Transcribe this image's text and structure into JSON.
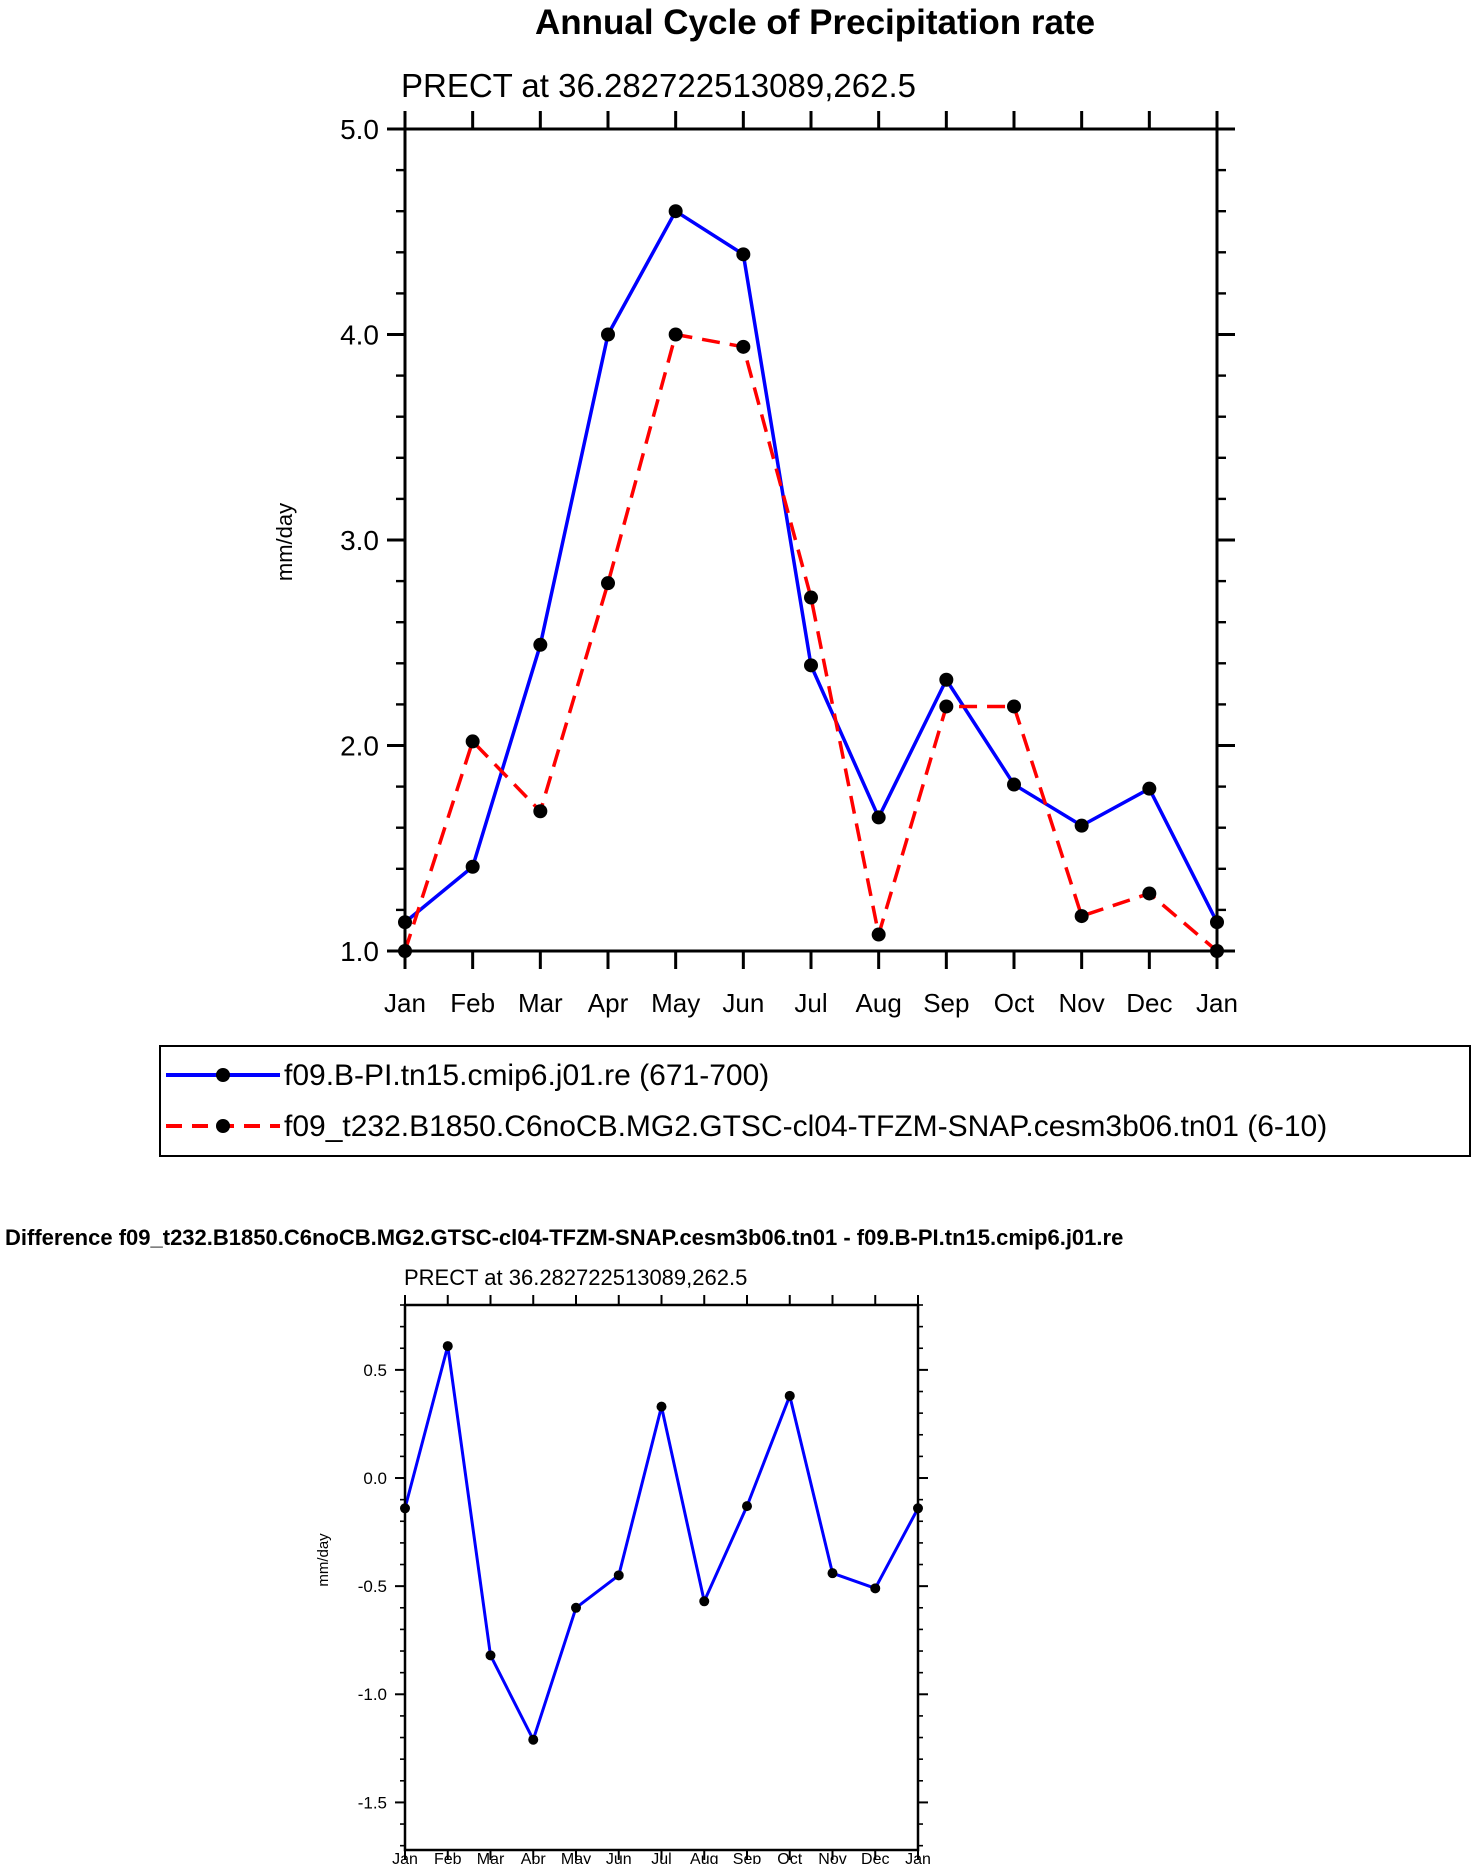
{
  "chart_data": [
    {
      "type": "line",
      "title": "Annual Cycle of Precipitation rate",
      "subtitle": "PRECT at 36.282722513089,262.5",
      "xlabel": "",
      "ylabel": "mm/day",
      "categories": [
        "Jan",
        "Feb",
        "Mar",
        "Apr",
        "May",
        "Jun",
        "Jul",
        "Aug",
        "Sep",
        "Oct",
        "Nov",
        "Dec",
        "Jan"
      ],
      "ylim": [
        1.0,
        5.0
      ],
      "yticks": [
        1.0,
        2.0,
        3.0,
        4.0,
        5.0
      ],
      "ytick_labels": [
        "1.0",
        "2.0",
        "3.0",
        "4.0",
        "5.0"
      ],
      "legend_position": "below",
      "series": [
        {
          "name": "f09.B-PI.tn15.cmip6.j01.re (671-700)",
          "color": "#0000ff",
          "style": "solid",
          "values": [
            1.14,
            1.41,
            2.49,
            4.0,
            4.6,
            4.39,
            2.39,
            1.65,
            2.32,
            1.81,
            1.61,
            1.79,
            1.14
          ]
        },
        {
          "name": "f09_t232.B1850.C6noCB.MG2.GTSC-cl04-TFZM-SNAP.cesm3b06.tn01 (6-10)",
          "color": "#ff0000",
          "style": "dashed",
          "values": [
            1.0,
            2.02,
            1.68,
            2.79,
            4.0,
            3.94,
            2.72,
            1.08,
            2.19,
            2.19,
            1.17,
            1.28,
            1.0
          ]
        }
      ]
    },
    {
      "type": "line",
      "title": "Difference f09_t232.B1850.C6noCB.MG2.GTSC-cl04-TFZM-SNAP.cesm3b06.tn01 - f09.B-PI.tn15.cmip6.j01.re",
      "subtitle": "PRECT at 36.282722513089,262.5",
      "xlabel": "",
      "ylabel": "mm/day",
      "categories": [
        "Jan",
        "Feb",
        "Mar",
        "Apr",
        "May",
        "Jun",
        "Jul",
        "Aug",
        "Sep",
        "Oct",
        "Nov",
        "Dec",
        "Jan"
      ],
      "ylim": [
        -1.72,
        0.8
      ],
      "yticks": [
        -1.5,
        -1.0,
        -0.5,
        0.0,
        0.5
      ],
      "ytick_labels": [
        "-1.5",
        "-1.0",
        "-0.5",
        "0.0",
        "0.5"
      ],
      "series": [
        {
          "name": "Difference",
          "color": "#0000ff",
          "style": "solid",
          "values": [
            -0.14,
            0.61,
            -0.82,
            -1.21,
            -0.6,
            -0.45,
            0.33,
            -0.57,
            -0.13,
            0.38,
            -0.44,
            -0.51,
            -0.14
          ]
        }
      ]
    }
  ]
}
